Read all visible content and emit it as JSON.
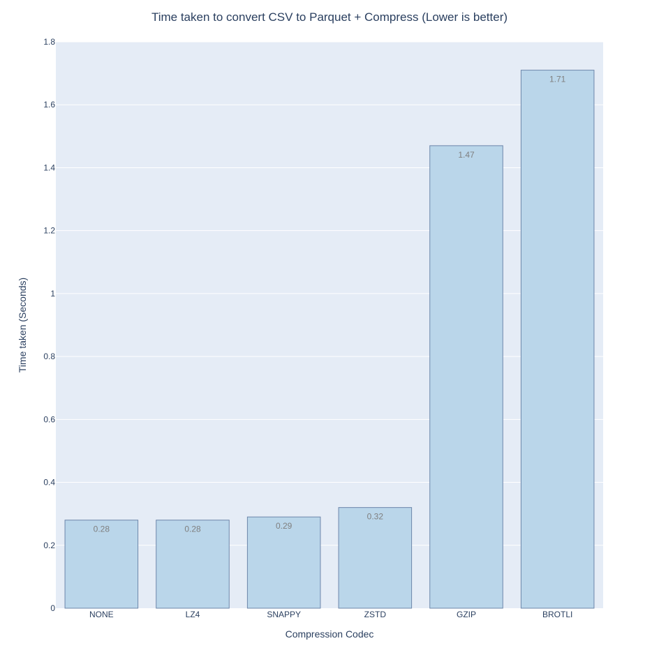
{
  "chart_data": {
    "type": "bar",
    "title": "Time taken to convert CSV to Parquet + Compress (Lower is better)",
    "xlabel": "Compression Codec",
    "ylabel": "Time taken (Seconds)",
    "categories": [
      "NONE",
      "LZ4",
      "SNAPPY",
      "ZSTD",
      "GZIP",
      "BROTLI"
    ],
    "values": [
      0.28,
      0.28,
      0.29,
      0.32,
      1.47,
      1.71
    ],
    "data_labels": [
      "0.28",
      "0.28",
      "0.29",
      "0.32",
      "1.47",
      "1.71"
    ],
    "ylim": [
      0,
      1.8
    ],
    "yticks": [
      0,
      0.2,
      0.4,
      0.6,
      0.8,
      1,
      1.2,
      1.4,
      1.6,
      1.8
    ],
    "ytick_labels": [
      "0",
      "0.2",
      "0.4",
      "0.6",
      "0.8",
      "1",
      "1.2",
      "1.4",
      "1.6",
      "1.8"
    ],
    "grid": true,
    "colors": {
      "plot_background": "#e5ecf6",
      "bar_fill": "#bad6ea",
      "bar_outline": "#6d86aa",
      "gridline": "#ffffff"
    }
  }
}
